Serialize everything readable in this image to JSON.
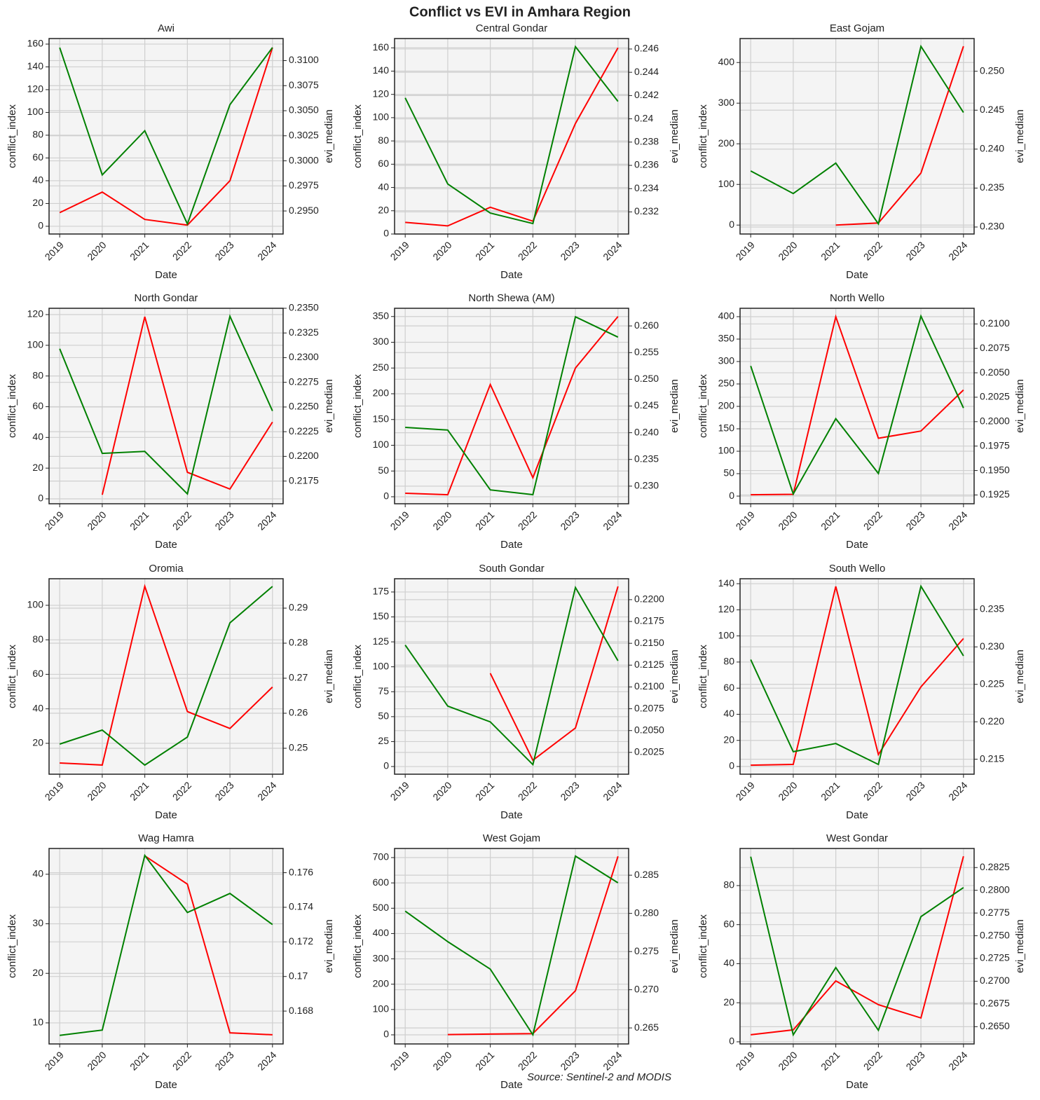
{
  "title": "Conflict vs EVI in Amhara Region",
  "source": "Source: Sentinel-2 and MODIS",
  "chart_data": [
    {
      "type": "line",
      "title": "Awi",
      "xlabel": "Date",
      "ylabel": "conflict_index",
      "y2label": "evi_median",
      "grid": true,
      "categories": [
        "2019",
        "2020",
        "2021",
        "2022",
        "2023",
        "2024"
      ],
      "series": [
        {
          "color": "#ff0000",
          "values": [
            12,
            30,
            6,
            1,
            40,
            157
          ]
        },
        {
          "color": "#008000",
          "axis": "y2",
          "values": [
            0.3113,
            0.2986,
            0.303,
            0.2937,
            0.3056,
            0.3113
          ]
        }
      ],
      "ylim": [
        -6.8,
        164.9
      ],
      "yticks": [
        0,
        20,
        40,
        60,
        80,
        100,
        120,
        140,
        160
      ],
      "y2lim": [
        0.2927,
        0.3122
      ],
      "y2ticks": [
        {
          "value": 0.295,
          "label": "0.2950"
        },
        0.2975,
        {
          "value": 0.3,
          "label": "0.3000"
        },
        0.3025,
        {
          "value": 0.305,
          "label": "0.3050"
        },
        0.3075,
        {
          "value": 0.31,
          "label": "0.3100"
        }
      ]
    },
    {
      "type": "line",
      "title": "Central Gondar",
      "xlabel": "Date",
      "ylabel": "conflict_index",
      "y2label": "evi_median",
      "grid": true,
      "categories": [
        "2019",
        "2020",
        "2021",
        "2022",
        "2023",
        "2024"
      ],
      "series": [
        {
          "color": "#ff0000",
          "values": [
            10,
            7,
            23,
            11,
            95,
            160
          ]
        },
        {
          "color": "#008000",
          "axis": "y2",
          "values": [
            0.2418,
            0.2344,
            0.2319,
            0.231,
            0.2462,
            0.2415
          ]
        }
      ],
      "ylim": [
        0,
        168
      ],
      "yticks": [
        0,
        20,
        40,
        60,
        80,
        100,
        120,
        140,
        160
      ],
      "y2lim": [
        0.2301,
        0.2469
      ],
      "y2ticks": [
        0.232,
        0.234,
        0.236,
        0.238,
        0.24,
        0.242,
        0.244,
        0.246
      ]
    },
    {
      "type": "line",
      "title": "East Gojam",
      "xlabel": "Date",
      "ylabel": "conflict_index",
      "y2label": "evi_median",
      "grid": true,
      "categories": [
        "2019",
        "2020",
        "2021",
        "2022",
        "2023",
        "2024"
      ],
      "series": [
        {
          "color": "#ff0000",
          "values": [
            null,
            null,
            0,
            5,
            128,
            440
          ]
        },
        {
          "color": "#008000",
          "axis": "y2",
          "values": [
            0.2372,
            0.2343,
            0.2382,
            0.2304,
            0.2532,
            0.2447
          ]
        }
      ],
      "ylim": [
        -22,
        459
      ],
      "yticks": [
        0,
        100,
        200,
        300,
        400
      ],
      "y2lim": [
        0.2291,
        0.2542
      ],
      "y2ticks": [
        {
          "value": 0.23,
          "label": "0.230"
        },
        0.235,
        {
          "value": 0.24,
          "label": "0.240"
        },
        0.245,
        {
          "value": 0.25,
          "label": "0.250"
        }
      ]
    },
    {
      "type": "line",
      "title": "North Gondar",
      "xlabel": "Date",
      "ylabel": "conflict_index",
      "y2label": "evi_median",
      "grid": true,
      "categories": [
        "2019",
        "2020",
        "2021",
        "2022",
        "2023",
        "2024"
      ],
      "series": [
        {
          "color": "#ff0000",
          "values": [
            null,
            2.7,
            118.6,
            17.3,
            6.4,
            50
          ]
        },
        {
          "color": "#008000",
          "axis": "y2",
          "values": [
            0.2309,
            0.2203,
            0.2205,
            0.2162,
            0.2342,
            0.2246
          ]
        }
      ],
      "ylim": [
        -3.2,
        124.1
      ],
      "yticks": [
        0,
        20,
        40,
        60,
        80,
        100,
        120
      ],
      "y2lim": [
        0.2152,
        0.235
      ],
      "y2ticks": [
        0.2175,
        {
          "value": 0.22,
          "label": "0.2200"
        },
        0.2225,
        {
          "value": 0.225,
          "label": "0.2250"
        },
        0.2275,
        {
          "value": 0.23,
          "label": "0.2300"
        },
        0.2325,
        {
          "value": 0.235,
          "label": "0.2350"
        }
      ]
    },
    {
      "type": "line",
      "title": "North Shewa (AM)",
      "xlabel": "Date",
      "ylabel": "conflict_index",
      "y2label": "evi_median",
      "grid": true,
      "categories": [
        "2019",
        "2020",
        "2021",
        "2022",
        "2023",
        "2024"
      ],
      "series": [
        {
          "color": "#ff0000",
          "values": [
            6.8,
            4,
            218,
            37,
            250,
            350
          ]
        },
        {
          "color": "#008000",
          "axis": "y2",
          "values": [
            0.241,
            0.2405,
            0.2293,
            0.2284,
            0.2617,
            0.2579
          ]
        }
      ],
      "ylim": [
        -13.6,
        366
      ],
      "yticks": [
        0,
        50,
        100,
        150,
        200,
        250,
        300,
        350
      ],
      "y2lim": [
        0.2267,
        0.2633
      ],
      "y2ticks": [
        {
          "value": 0.23,
          "label": "0.230"
        },
        0.235,
        {
          "value": 0.24,
          "label": "0.240"
        },
        0.245,
        {
          "value": 0.25,
          "label": "0.250"
        },
        0.255,
        {
          "value": 0.26,
          "label": "0.260"
        }
      ]
    },
    {
      "type": "line",
      "title": "North Wello",
      "xlabel": "Date",
      "ylabel": "conflict_index",
      "y2label": "evi_median",
      "grid": true,
      "categories": [
        "2019",
        "2020",
        "2021",
        "2022",
        "2023",
        "2024"
      ],
      "series": [
        {
          "color": "#ff0000",
          "values": [
            3,
            4,
            400,
            129,
            145,
            236.6
          ]
        },
        {
          "color": "#008000",
          "axis": "y2",
          "values": [
            0.2057,
            0.1926,
            0.2003,
            0.1947,
            0.2108,
            0.2014
          ]
        }
      ],
      "ylim": [
        -17.1,
        418.7
      ],
      "yticks": [
        0,
        50,
        100,
        150,
        200,
        250,
        300,
        350,
        400
      ],
      "y2lim": [
        0.1916,
        0.2116
      ],
      "y2ticks": [
        0.1925,
        {
          "value": 0.195,
          "label": "0.1950"
        },
        0.1975,
        {
          "value": 0.2,
          "label": "0.2000"
        },
        0.2025,
        {
          "value": 0.205,
          "label": "0.2050"
        },
        0.2075,
        {
          "value": 0.21,
          "label": "0.2100"
        }
      ]
    },
    {
      "type": "line",
      "title": "Oromia",
      "xlabel": "Date",
      "ylabel": "conflict_index",
      "y2label": "evi_median",
      "grid": true,
      "categories": [
        "2019",
        "2020",
        "2021",
        "2022",
        "2023",
        "2024"
      ],
      "series": [
        {
          "color": "#ff0000",
          "values": [
            8.6,
            7.4,
            111,
            38.4,
            28.6,
            52.6
          ]
        },
        {
          "color": "#008000",
          "axis": "y2",
          "values": [
            0.2512,
            0.2552,
            0.2452,
            0.2532,
            0.2858,
            0.2962
          ]
        }
      ],
      "ylim": [
        2.1,
        115.4
      ],
      "yticks": [
        20,
        40,
        60,
        80,
        100
      ],
      "y2lim": [
        0.2426,
        0.2984
      ],
      "y2ticks": [
        0.25,
        0.26,
        0.27,
        0.28,
        0.29
      ]
    },
    {
      "type": "line",
      "title": "South Gondar",
      "xlabel": "Date",
      "ylabel": "conflict_index",
      "y2label": "evi_median",
      "grid": true,
      "categories": [
        "2019",
        "2020",
        "2021",
        "2022",
        "2023",
        "2024"
      ],
      "series": [
        {
          "color": "#ff0000",
          "values": [
            null,
            null,
            93.5,
            6.3,
            38.7,
            180.6
          ]
        },
        {
          "color": "#008000",
          "axis": "y2",
          "values": [
            0.2148,
            0.2078,
            0.206,
            0.2011,
            0.2214,
            0.213
          ]
        }
      ],
      "ylim": [
        -7.7,
        188.3
      ],
      "yticks": [
        0,
        25,
        50,
        75,
        100,
        125,
        150,
        175
      ],
      "y2lim": [
        0.2,
        0.2224
      ],
      "y2ticks": [
        0.2025,
        {
          "value": 0.205,
          "label": "0.2050"
        },
        0.2075,
        {
          "value": 0.21,
          "label": "0.2100"
        },
        0.2125,
        {
          "value": 0.215,
          "label": "0.2150"
        },
        0.2175,
        {
          "value": 0.22,
          "label": "0.2200"
        }
      ]
    },
    {
      "type": "line",
      "title": "South Wello",
      "xlabel": "Date",
      "ylabel": "conflict_index",
      "y2label": "evi_median",
      "grid": true,
      "categories": [
        "2019",
        "2020",
        "2021",
        "2022",
        "2023",
        "2024"
      ],
      "series": [
        {
          "color": "#ff0000",
          "values": [
            1,
            1.6,
            137.9,
            9.1,
            61,
            98
          ]
        },
        {
          "color": "#008000",
          "axis": "y2",
          "values": [
            0.2283,
            0.216,
            0.2171,
            0.2143,
            0.2381,
            0.2288
          ]
        }
      ],
      "ylim": [
        -5.9,
        143.8
      ],
      "yticks": [
        0,
        20,
        40,
        60,
        80,
        100,
        120,
        140
      ],
      "y2lim": [
        0.213,
        0.2391
      ],
      "y2ticks": [
        0.215,
        {
          "value": 0.22,
          "label": "0.220"
        },
        0.225,
        {
          "value": 0.23,
          "label": "0.230"
        },
        0.235
      ]
    },
    {
      "type": "line",
      "title": "Wag Hamra",
      "xlabel": "Date",
      "ylabel": "conflict_index",
      "y2label": "evi_median",
      "grid": true,
      "categories": [
        "2019",
        "2020",
        "2021",
        "2022",
        "2023",
        "2024"
      ],
      "series": [
        {
          "color": "#ff0000",
          "values": [
            null,
            null,
            43.7,
            38,
            8,
            7.6
          ]
        },
        {
          "color": "#008000",
          "axis": "y2",
          "values": [
            0.1666,
            0.1669,
            0.177,
            0.1737,
            0.1748,
            0.173
          ]
        }
      ],
      "ylim": [
        5.75,
        45.2
      ],
      "yticks": [
        10,
        20,
        30,
        40
      ],
      "y2lim": [
        0.1661,
        0.1774
      ],
      "y2ticks": [
        0.168,
        0.17,
        0.172,
        0.174,
        0.176
      ]
    },
    {
      "type": "line",
      "title": "West Gojam",
      "xlabel": "Date",
      "ylabel": "conflict_index",
      "y2label": "evi_median",
      "grid": true,
      "categories": [
        "2019",
        "2020",
        "2021",
        "2022",
        "2023",
        "2024"
      ],
      "series": [
        {
          "color": "#ff0000",
          "values": [
            null,
            1,
            3,
            5,
            174,
            705
          ]
        },
        {
          "color": "#008000",
          "axis": "y2",
          "values": [
            0.2803,
            0.2763,
            0.2727,
            0.2641,
            0.2875,
            0.284
          ]
        }
      ],
      "ylim": [
        -36,
        736
      ],
      "yticks": [
        0,
        100,
        200,
        300,
        400,
        500,
        600,
        700
      ],
      "y2lim": [
        0.2629,
        0.2885
      ],
      "y2ticks": [
        0.265,
        {
          "value": 0.27,
          "label": "0.270"
        },
        0.275,
        {
          "value": 0.28,
          "label": "0.280"
        },
        0.285
      ]
    },
    {
      "type": "line",
      "title": "West Gondar",
      "xlabel": "Date",
      "ylabel": "conflict_index",
      "y2label": "evi_median",
      "grid": true,
      "categories": [
        "2019",
        "2020",
        "2021",
        "2022",
        "2023",
        "2024"
      ],
      "series": [
        {
          "color": "#ff0000",
          "values": [
            3.6,
            6.1,
            31.2,
            19,
            12.2,
            95
          ]
        },
        {
          "color": "#008000",
          "axis": "y2",
          "values": [
            0.2837,
            0.2641,
            0.2715,
            0.2646,
            0.2771,
            0.2803
          ]
        }
      ],
      "ylim": [
        -1.1,
        99
      ],
      "yticks": [
        0,
        20,
        40,
        60,
        80
      ],
      "y2lim": [
        0.2631,
        0.2846
      ],
      "y2ticks": [
        {
          "value": 0.265,
          "label": "0.2650"
        },
        0.2675,
        {
          "value": 0.27,
          "label": "0.2700"
        },
        0.2725,
        {
          "value": 0.275,
          "label": "0.2750"
        },
        0.2775,
        {
          "value": 0.28,
          "label": "0.2800"
        },
        0.2825
      ]
    }
  ]
}
